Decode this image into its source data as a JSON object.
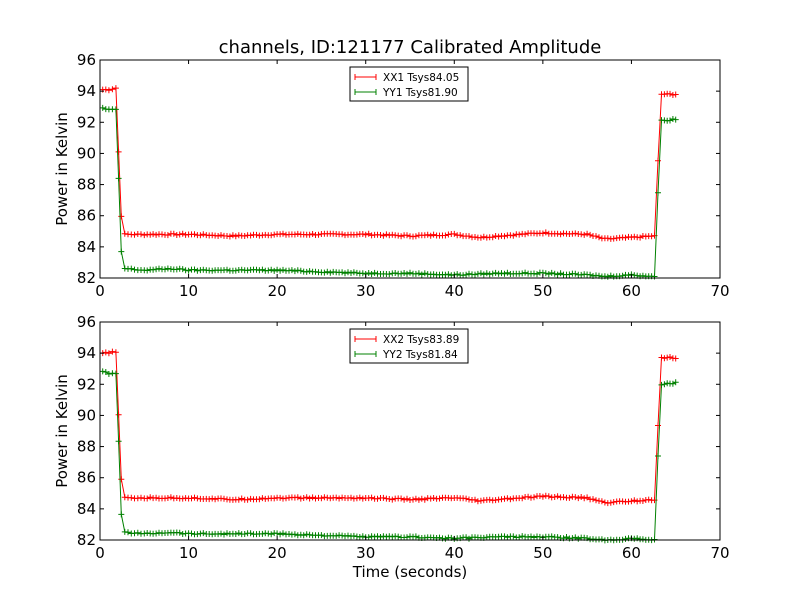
{
  "title": "channels, ID:121177 Calibrated Amplitude",
  "colors": {
    "xx": "#ff0000",
    "yy": "#008000"
  },
  "chart_data": [
    {
      "type": "line",
      "xlabel": "",
      "ylabel": "Power in Kelvin",
      "xlim": [
        0,
        70
      ],
      "ylim": [
        82,
        96
      ],
      "xticks": [
        0,
        10,
        20,
        30,
        40,
        50,
        60,
        70
      ],
      "yticks": [
        82,
        84,
        86,
        88,
        90,
        92,
        94,
        96
      ],
      "grid": false,
      "legend_position": "top-center",
      "series": [
        {
          "name": "XX1 Tsys84.05",
          "color": "#ff0000",
          "x": [
            0.3,
            1.0,
            1.8,
            2.1,
            2.4,
            2.8,
            5,
            10,
            15,
            20,
            25,
            30,
            35,
            40,
            43,
            45,
            50,
            55,
            57,
            60,
            62.6,
            63.0,
            63.4,
            65
          ],
          "y": [
            94.1,
            94.1,
            94.2,
            90.1,
            86.0,
            84.8,
            84.8,
            84.8,
            84.7,
            84.8,
            84.8,
            84.8,
            84.7,
            84.8,
            84.6,
            84.7,
            84.9,
            84.8,
            84.5,
            84.6,
            84.7,
            89.5,
            93.8,
            93.8
          ]
        },
        {
          "name": "YY1 Tsys81.90",
          "color": "#008000",
          "x": [
            0.3,
            1.0,
            1.8,
            2.1,
            2.4,
            2.8,
            5,
            8,
            10,
            15,
            20,
            25,
            30,
            35,
            40,
            45,
            50,
            55,
            57,
            60,
            62.6,
            63.0,
            63.4,
            65
          ],
          "y": [
            92.9,
            92.8,
            92.8,
            88.4,
            83.7,
            82.6,
            82.5,
            82.6,
            82.5,
            82.5,
            82.5,
            82.4,
            82.3,
            82.3,
            82.2,
            82.3,
            82.3,
            82.2,
            82.1,
            82.2,
            82.1,
            87.5,
            92.1,
            92.2
          ]
        }
      ]
    },
    {
      "type": "line",
      "xlabel": "Time (seconds)",
      "ylabel": "Power in Kelvin",
      "xlim": [
        0,
        70
      ],
      "ylim": [
        82,
        96
      ],
      "xticks": [
        0,
        10,
        20,
        30,
        40,
        50,
        60,
        70
      ],
      "yticks": [
        82,
        84,
        86,
        88,
        90,
        92,
        94,
        96
      ],
      "grid": false,
      "legend_position": "top-center",
      "series": [
        {
          "name": "XX2 Tsys83.89",
          "color": "#ff0000",
          "x": [
            0.3,
            1.0,
            1.8,
            2.1,
            2.4,
            2.8,
            5,
            10,
            15,
            20,
            25,
            30,
            35,
            40,
            43,
            45,
            50,
            55,
            57,
            60,
            62.6,
            63.0,
            63.4,
            65
          ],
          "y": [
            94.0,
            94.0,
            94.1,
            90.0,
            85.9,
            84.7,
            84.7,
            84.7,
            84.6,
            84.7,
            84.7,
            84.7,
            84.6,
            84.7,
            84.5,
            84.6,
            84.8,
            84.7,
            84.4,
            84.5,
            84.6,
            89.4,
            93.7,
            93.7
          ]
        },
        {
          "name": "YY2 Tsys81.84",
          "color": "#008000",
          "x": [
            0.3,
            1.0,
            1.8,
            2.1,
            2.4,
            2.8,
            5,
            8,
            10,
            15,
            20,
            25,
            30,
            35,
            40,
            45,
            50,
            55,
            57,
            60,
            62.6,
            63.0,
            63.4,
            65
          ],
          "y": [
            92.8,
            92.7,
            92.7,
            88.3,
            83.6,
            82.5,
            82.4,
            82.5,
            82.4,
            82.4,
            82.4,
            82.3,
            82.2,
            82.2,
            82.1,
            82.2,
            82.2,
            82.1,
            82.0,
            82.1,
            82.0,
            87.4,
            92.0,
            92.1
          ]
        }
      ]
    }
  ]
}
